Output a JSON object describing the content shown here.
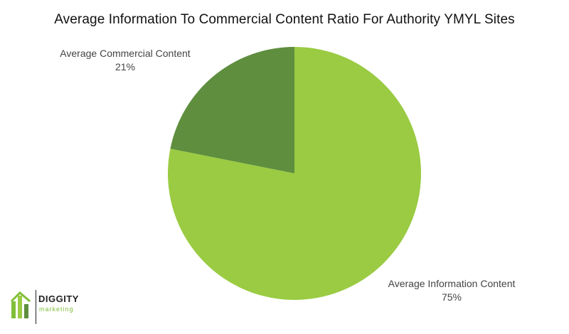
{
  "chart_data": {
    "type": "pie",
    "title": "Average Information To Commercial Content Ratio For Authority YMYL Sites",
    "slices": [
      {
        "label": "Average Information Content",
        "value": 75,
        "display": "75%",
        "color": "#9acb42"
      },
      {
        "label": "Average Commercial Content",
        "value": 21,
        "display": "21%",
        "color": "#5e8e3e"
      }
    ]
  },
  "branding": {
    "logo_text": "DIGGITY",
    "logo_subtext": "marketing"
  }
}
